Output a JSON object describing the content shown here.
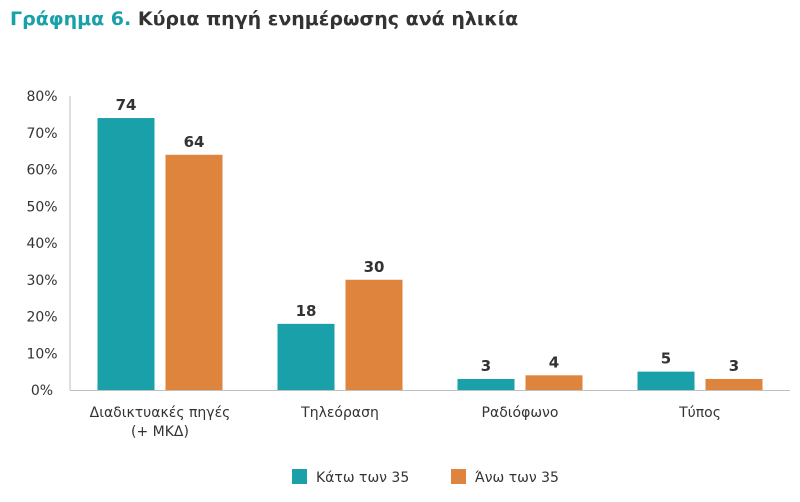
{
  "title": {
    "lead": "Γράφημα 6.",
    "text": "Κύρια πηγή ενημέρωσης ανά ηλικία"
  },
  "colors": {
    "series1": "#1aa0a8",
    "series2": "#de843c",
    "axis": "#bfbfbf",
    "text": "#333333"
  },
  "chart_data": {
    "type": "bar",
    "categories": [
      [
        "Διαδικτυακές πηγές",
        "(+ ΜΚΔ)"
      ],
      [
        "Τηλεόραση"
      ],
      [
        "Ραδιόφωνο"
      ],
      [
        "Τύπος"
      ]
    ],
    "series": [
      {
        "name": "Κάτω των 35",
        "values": [
          74,
          18,
          3,
          5
        ]
      },
      {
        "name": "Άνω των 35",
        "values": [
          64,
          30,
          4,
          3
        ]
      }
    ],
    "yticks": [
      "0%",
      "10%",
      "20%",
      "30%",
      "40%",
      "50%",
      "60%",
      "70%",
      "80%"
    ],
    "ylim": [
      0,
      80
    ],
    "grid": false,
    "legend_position": "bottom"
  }
}
